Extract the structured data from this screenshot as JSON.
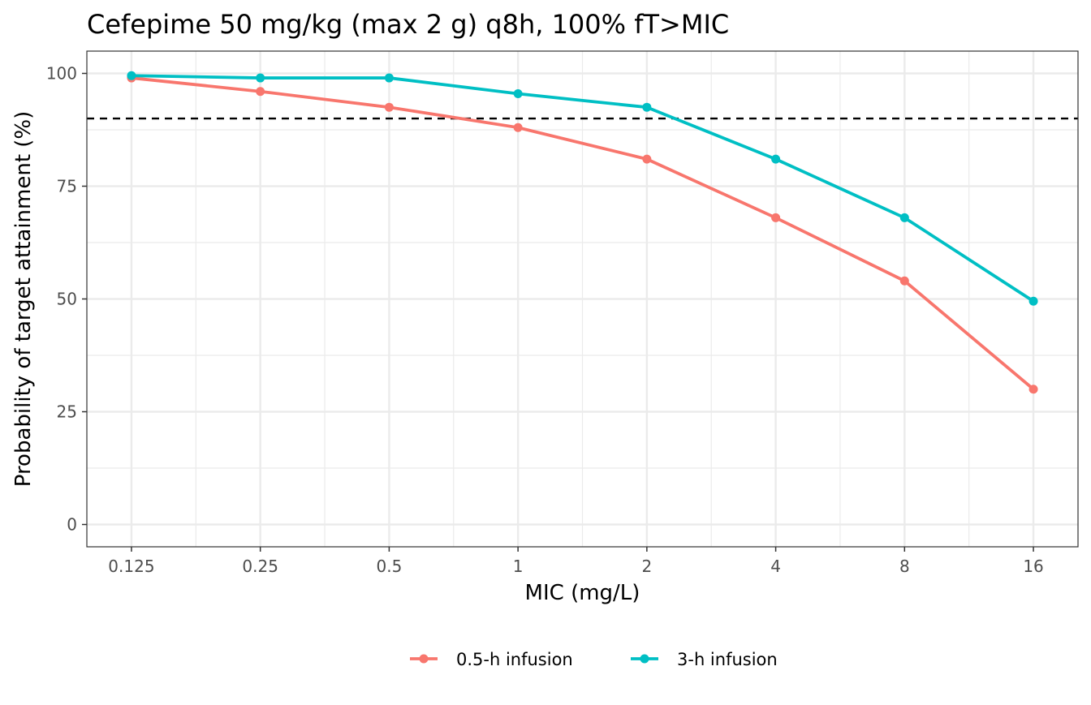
{
  "chart_data": {
    "type": "line",
    "title": "Cefepime 50 mg/kg (max 2 g) q8h, 100% fT>MIC",
    "xlabel": "MIC (mg/L)",
    "ylabel": "Probability of target attainment (%)",
    "x_scale": "log2",
    "x": [
      0.125,
      0.25,
      0.5,
      1,
      2,
      4,
      8,
      16
    ],
    "x_tick_labels": [
      "0.125",
      "0.25",
      "0.5",
      "1",
      "2",
      "4",
      "8",
      "16"
    ],
    "xlim": [
      0.125,
      16
    ],
    "y_ticks": [
      0,
      25,
      50,
      75,
      100
    ],
    "ylim": [
      0,
      100
    ],
    "reference_line": {
      "y": 90,
      "style": "dashed",
      "color": "#000000"
    },
    "grid": true,
    "legend_position": "bottom",
    "series": [
      {
        "name": "0.5-h infusion",
        "color": "#F8766D",
        "values": [
          99,
          96,
          92.5,
          88,
          81,
          68,
          54,
          30
        ]
      },
      {
        "name": "3-h infusion",
        "color": "#00BFC4",
        "values": [
          99.5,
          99,
          99,
          95.5,
          92.5,
          81,
          68,
          49.5
        ]
      }
    ]
  }
}
